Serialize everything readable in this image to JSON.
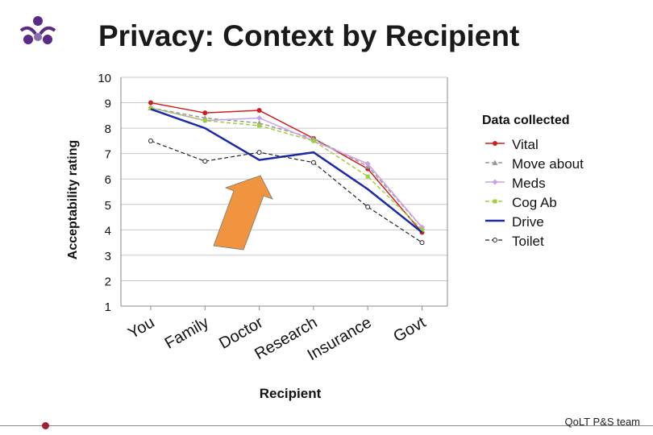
{
  "slide": {
    "title": "Privacy: Context by Recipient",
    "footer": "QoLT P&S team",
    "logo_icon": "qolt-logo-icon",
    "arrow_icon": "orange-arrow-icon"
  },
  "chart_data": {
    "type": "line",
    "title": "",
    "xlabel": "Recipient",
    "ylabel": "Acceptability rating",
    "categories": [
      "You",
      "Family",
      "Doctor",
      "Research",
      "Insurance",
      "Govt"
    ],
    "ylim": [
      1,
      10
    ],
    "yticks": [
      "1",
      "2",
      "3",
      "4",
      "5",
      "6",
      "7",
      "8",
      "9",
      "10"
    ],
    "grid": true,
    "legend_title": "Data collected",
    "legend_position": "right",
    "series": [
      {
        "name": "Vital",
        "color": "#cc1f1f",
        "dash": "solid",
        "marker": "circle",
        "width": 1.5,
        "values": [
          9.0,
          8.6,
          8.7,
          7.6,
          6.4,
          3.9
        ]
      },
      {
        "name": "Move about",
        "color": "#9a9a9a",
        "dash": "dashed",
        "marker": "triangle",
        "width": 1.5,
        "values": [
          8.8,
          8.4,
          8.2,
          7.6,
          6.5,
          4.1
        ]
      },
      {
        "name": "Meds",
        "color": "#c9a0e6",
        "dash": "solid",
        "marker": "diamond",
        "width": 1.5,
        "values": [
          8.8,
          8.3,
          8.4,
          7.5,
          6.6,
          4.1
        ]
      },
      {
        "name": "Cog Ab",
        "color": "#9ecf3a",
        "dash": "dashed",
        "marker": "square",
        "width": 1.5,
        "values": [
          8.8,
          8.3,
          8.1,
          7.5,
          6.1,
          4.0
        ]
      },
      {
        "name": "Drive",
        "color": "#1a2aa6",
        "dash": "solid",
        "marker": "none",
        "width": 2.5,
        "values": [
          8.75,
          8.0,
          6.75,
          7.05,
          5.6,
          3.9
        ]
      },
      {
        "name": "Toilet",
        "color": "#222222",
        "dash": "dashed",
        "marker": "open-circle",
        "width": 1.2,
        "values": [
          7.5,
          6.7,
          7.05,
          6.65,
          4.9,
          3.5
        ]
      }
    ]
  }
}
